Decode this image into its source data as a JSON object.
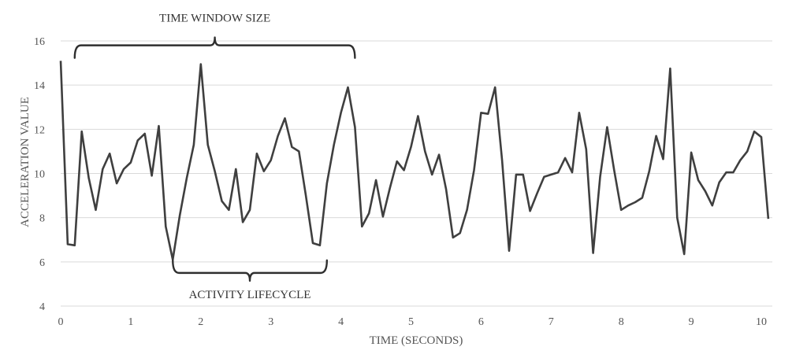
{
  "chart_data": {
    "type": "line",
    "title": "",
    "xlabel": "TIME (SECONDS)",
    "ylabel": "ACCELERATION VALUE",
    "xlim": [
      0,
      10.1
    ],
    "ylim": [
      4,
      16
    ],
    "xticks": [
      "0",
      "1",
      "2",
      "3",
      "4",
      "5",
      "6",
      "7",
      "8",
      "9",
      "10"
    ],
    "yticks": [
      "4",
      "6",
      "8",
      "10",
      "12",
      "14",
      "16"
    ],
    "grid": "horizontal",
    "series": [
      {
        "color": "#3f3f3f",
        "x": [
          0,
          0.1,
          0.2,
          0.3,
          0.4,
          0.5,
          0.6,
          0.7,
          0.8,
          0.9,
          1.0,
          1.1,
          1.2,
          1.3,
          1.4,
          1.5,
          1.6,
          1.7,
          1.8,
          1.9,
          2.0,
          2.1,
          2.2,
          2.3,
          2.4,
          2.5,
          2.6,
          2.7,
          2.8,
          2.9,
          3.0,
          3.1,
          3.2,
          3.3,
          3.4,
          3.5,
          3.6,
          3.7,
          3.8,
          3.9,
          4.0,
          4.1,
          4.2,
          4.3,
          4.4,
          4.5,
          4.6,
          4.7,
          4.8,
          4.9,
          5.0,
          5.1,
          5.2,
          5.3,
          5.4,
          5.5,
          5.6,
          5.7,
          5.8,
          5.9,
          6.0,
          6.1,
          6.2,
          6.3,
          6.4,
          6.5,
          6.6,
          6.7,
          6.8,
          6.9,
          7.0,
          7.1,
          7.2,
          7.3,
          7.4,
          7.5,
          7.6,
          7.7,
          7.8,
          7.9,
          8.0,
          8.1,
          8.2,
          8.3,
          8.4,
          8.5,
          8.6,
          8.7,
          8.8,
          8.9,
          9.0,
          9.1,
          9.2,
          9.3,
          9.4,
          9.5,
          9.6,
          9.7,
          9.8,
          9.9,
          10.0,
          10.1
        ],
        "y": [
          15.1,
          6.8,
          6.75,
          11.9,
          9.8,
          8.35,
          10.2,
          10.9,
          9.55,
          10.2,
          10.5,
          11.5,
          11.8,
          9.9,
          12.15,
          7.6,
          6.1,
          8.1,
          9.8,
          11.3,
          14.95,
          11.3,
          10.1,
          8.75,
          8.35,
          10.2,
          7.8,
          8.35,
          10.9,
          10.1,
          10.6,
          11.7,
          12.5,
          11.2,
          11.0,
          9.0,
          6.85,
          6.75,
          9.55,
          11.3,
          12.75,
          13.9,
          12.1,
          7.6,
          8.2,
          9.7,
          8.05,
          9.35,
          10.55,
          10.15,
          11.2,
          12.6,
          11.0,
          9.95,
          10.85,
          9.3,
          7.1,
          7.3,
          8.35,
          10.15,
          12.75,
          12.7,
          13.9,
          10.6,
          6.5,
          9.95,
          9.95,
          8.3,
          9.1,
          9.85,
          9.95,
          10.05,
          10.7,
          10.05,
          12.75,
          11.1,
          6.4,
          9.85,
          12.1,
          10.15,
          8.35,
          8.55,
          8.7,
          8.9,
          10.1,
          11.7,
          10.65,
          14.75,
          8.0,
          6.35,
          10.95,
          9.7,
          9.2,
          8.55,
          9.6,
          10.05,
          10.05,
          10.6,
          11.0,
          11.9,
          11.65,
          7.95
        ]
      }
    ],
    "annotations": [
      {
        "text": "TIME WINDOW SIZE",
        "type": "brace",
        "orientation": "up",
        "from": 0.2,
        "to": 4.2,
        "level": 15.8
      },
      {
        "text": "ACTIVITY LIFECYCLE",
        "type": "brace",
        "orientation": "down",
        "from": 1.6,
        "to": 3.8,
        "level": 5.5
      }
    ]
  }
}
